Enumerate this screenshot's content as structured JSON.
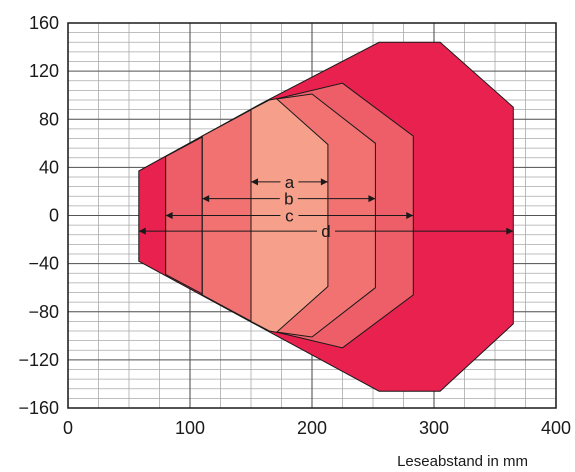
{
  "chart_data": {
    "type": "area",
    "xlabel": "Leseabstand in mm",
    "ylabel": "",
    "xlim": [
      0,
      400
    ],
    "ylim": [
      -160,
      160
    ],
    "x_ticks": [
      "0",
      "100",
      "200",
      "300",
      "400"
    ],
    "y_ticks": [
      "160",
      "120",
      "80",
      "40",
      "0",
      "−40",
      "−80",
      "−120",
      "−160"
    ],
    "grid": true,
    "minor_grid_x_step": 25,
    "minor_grid_y_step": 8,
    "colors": {
      "d": "#E8214F",
      "c": "#EE5E69",
      "b": "#F27272",
      "a": "#F6A08C",
      "outline": "#1a1a1a",
      "grid_major": "#555555",
      "grid_minor": "#aaaaaa"
    },
    "regions": [
      {
        "name": "d",
        "polygon": [
          [
            58,
            37
          ],
          [
            160,
            94
          ],
          [
            255,
            144
          ],
          [
            305,
            144
          ],
          [
            365,
            90
          ],
          [
            365,
            -90
          ],
          [
            305,
            -146
          ],
          [
            255,
            -146
          ],
          [
            160,
            -94
          ],
          [
            58,
            -38
          ]
        ]
      },
      {
        "name": "c",
        "polygon": [
          [
            80,
            49
          ],
          [
            167,
            96
          ],
          [
            225,
            110
          ],
          [
            283,
            66
          ],
          [
            283,
            -66
          ],
          [
            225,
            -110
          ],
          [
            167,
            -96
          ],
          [
            80,
            -49
          ]
        ]
      },
      {
        "name": "b",
        "polygon": [
          [
            110,
            66
          ],
          [
            165,
            96
          ],
          [
            200,
            101
          ],
          [
            252,
            60
          ],
          [
            252,
            -60
          ],
          [
            200,
            -101
          ],
          [
            165,
            -96
          ],
          [
            110,
            -66
          ]
        ]
      },
      {
        "name": "a",
        "polygon": [
          [
            150,
            88
          ],
          [
            165,
            96
          ],
          [
            171,
            97
          ],
          [
            213,
            59
          ],
          [
            213,
            -59
          ],
          [
            171,
            -97
          ],
          [
            165,
            -96
          ],
          [
            150,
            -88
          ]
        ]
      }
    ],
    "dimension_lines": [
      {
        "label": "a",
        "x_start": 150,
        "x_end": 213,
        "y": 28
      },
      {
        "label": "b",
        "x_start": 110,
        "x_end": 252,
        "y": 14
      },
      {
        "label": "c",
        "x_start": 80,
        "x_end": 283,
        "y": 0
      },
      {
        "label": "d",
        "x_start": 58,
        "x_end": 365,
        "y": -13
      }
    ],
    "divider_lines": [
      {
        "x": 80,
        "y_min": -49,
        "y_max": 49
      },
      {
        "x": 110,
        "y_min": -66,
        "y_max": 66
      },
      {
        "x": 150,
        "y_min": -88,
        "y_max": 88
      }
    ]
  }
}
